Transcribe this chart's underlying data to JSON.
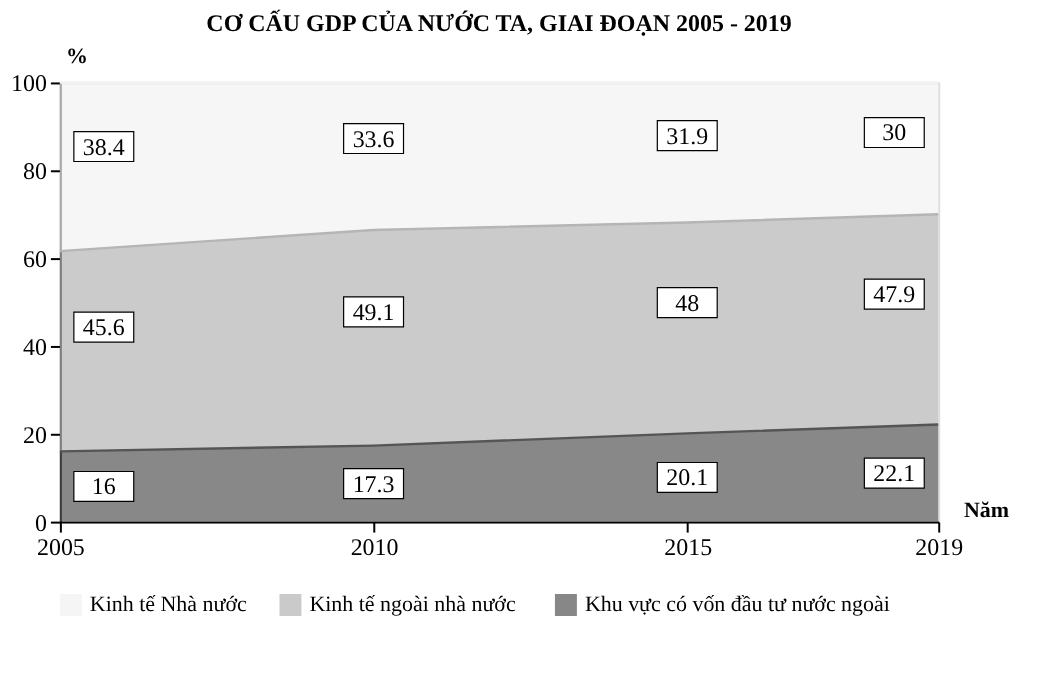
{
  "chart_data": {
    "type": "area",
    "stacked": true,
    "title": "CƠ CẤU GDP CỦA NƯỚC TA, GIAI ĐOẠN 2005 - 2019",
    "xlabel": "Năm",
    "ylabel": "%",
    "x": [
      2005,
      2010,
      2015,
      2019
    ],
    "xlim": [
      2005,
      2019
    ],
    "xticks": [
      2005,
      2010,
      2015,
      2019
    ],
    "ylim": [
      0,
      100
    ],
    "yticks": [
      0,
      20,
      40,
      60,
      80,
      100
    ],
    "grid": false,
    "legend": "bottom",
    "data_labels": true,
    "series": [
      {
        "name": "Khu vực có vốn đầu tư nước ngoài",
        "color": "#555555",
        "values": [
          16,
          17.3,
          20.1,
          22.1
        ]
      },
      {
        "name": "Kinh tế  ngoài nhà nước",
        "color": "#b5b5b5",
        "values": [
          45.6,
          49.1,
          48,
          47.9
        ]
      },
      {
        "name": "Kinh tế Nhà nước",
        "color": "#f2f2f2",
        "values": [
          38.4,
          33.6,
          31.9,
          30
        ]
      }
    ]
  }
}
